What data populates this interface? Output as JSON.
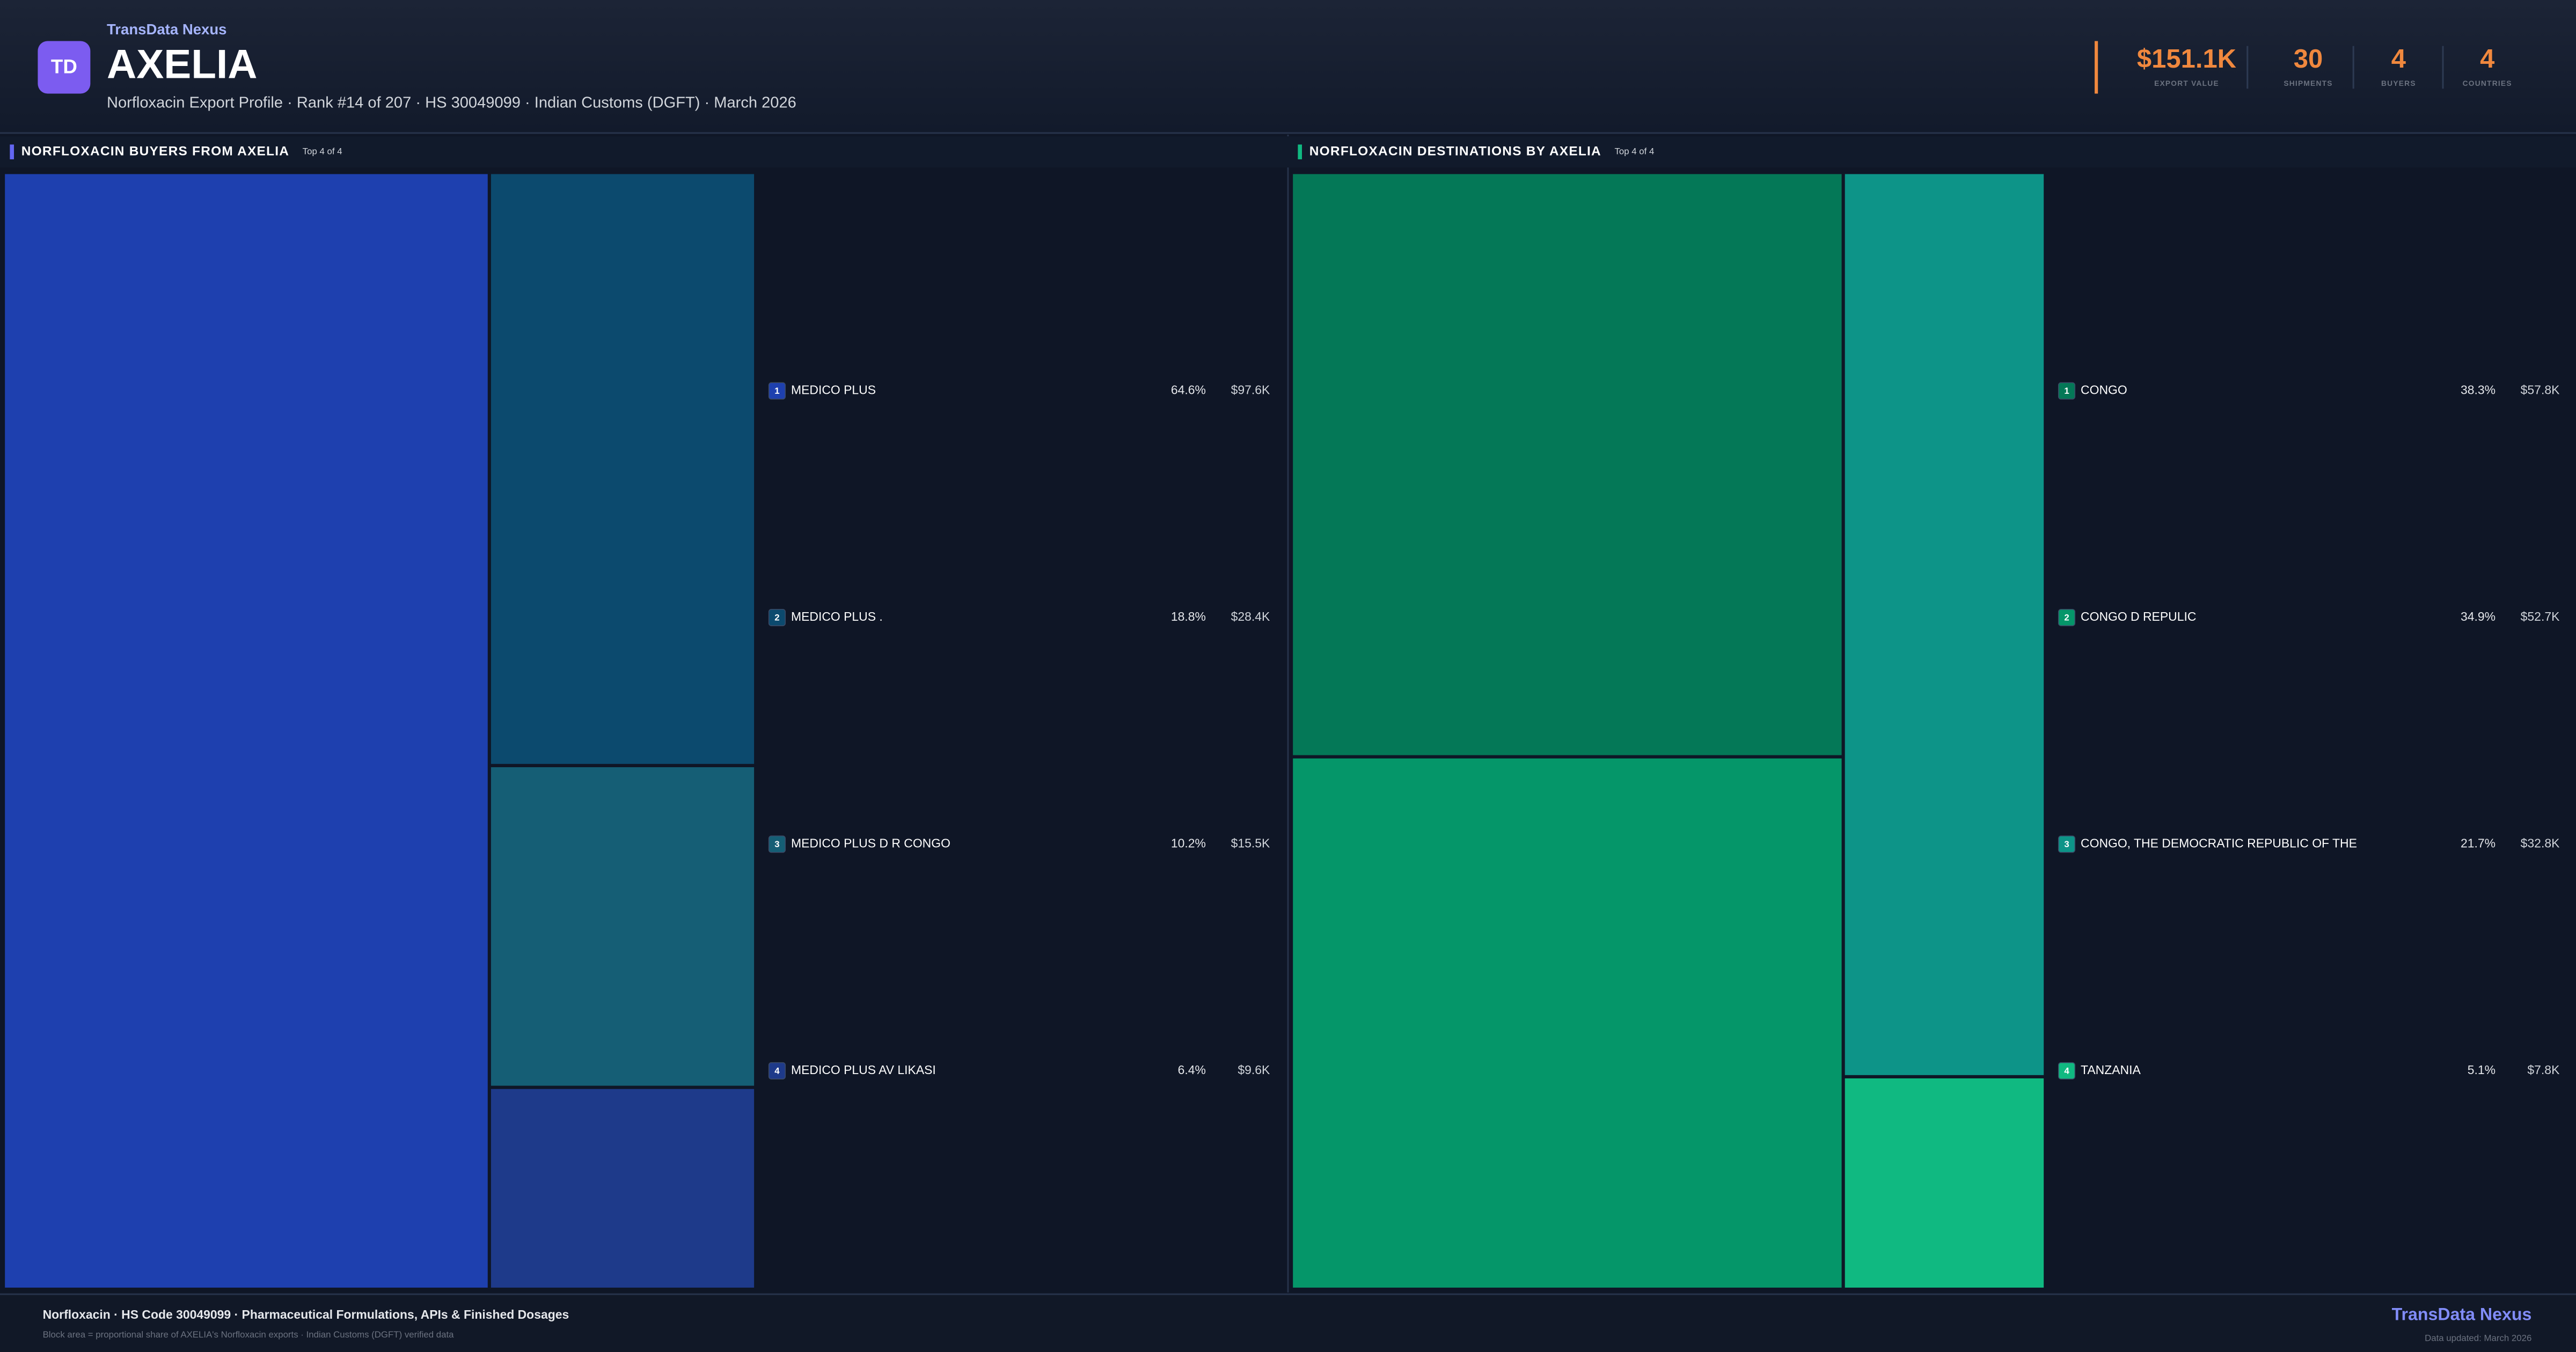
{
  "header": {
    "brand": "TransData Nexus",
    "logo": "TD",
    "title": "AXELIA",
    "subtitle": "Norfloxacin Export Profile · Rank #14 of 207 · HS 30049099 · Indian Customs (DGFT) · March 2026"
  },
  "kpis": [
    {
      "value": "$151.1K",
      "label": "EXPORT VALUE"
    },
    {
      "value": "30",
      "label": "SHIPMENTS"
    },
    {
      "value": "4",
      "label": "BUYERS"
    },
    {
      "value": "4",
      "label": "COUNTRIES"
    }
  ],
  "chart_data": [
    {
      "type": "treemap",
      "title": "NORFLOXACIN BUYERS FROM AXELIA",
      "subtitle": "Top 4 of 4",
      "accent": "#6366f1",
      "categories": [
        "MEDICO PLUS",
        "MEDICO PLUS .",
        "MEDICO PLUS D R CONGO",
        "MEDICO PLUS AV LIKASI"
      ],
      "ranks": [
        1,
        2,
        3,
        4
      ],
      "values": [
        97.6,
        28.4,
        15.5,
        9.6
      ],
      "value_labels": [
        "$97.6K",
        "$28.4K",
        "$15.5K",
        "$9.6K"
      ],
      "shares": [
        64.6,
        18.8,
        10.2,
        6.4
      ],
      "share_labels": [
        "64.6%",
        "18.8%",
        "10.2%",
        "6.4%"
      ],
      "colors": [
        "#1e40af",
        "#0c4a6e",
        "#155e75",
        "#1e3a8a"
      ]
    },
    {
      "type": "treemap",
      "title": "NORFLOXACIN DESTINATIONS BY AXELIA",
      "subtitle": "Top 4 of 4",
      "accent": "#10b981",
      "categories": [
        "CONGO",
        "CONGO D REPULIC",
        "CONGO, THE DEMOCRATIC REPUBLIC OF THE",
        "TANZANIA"
      ],
      "ranks": [
        1,
        2,
        3,
        4
      ],
      "values": [
        57.8,
        52.7,
        32.8,
        7.8
      ],
      "value_labels": [
        "$57.8K",
        "$52.7K",
        "$32.8K",
        "$7.8K"
      ],
      "shares": [
        38.3,
        34.9,
        21.7,
        5.1
      ],
      "share_labels": [
        "38.3%",
        "34.9%",
        "21.7%",
        "5.1%"
      ],
      "colors": [
        "#047857",
        "#059669",
        "#0d9488",
        "#10b981"
      ]
    }
  ],
  "footer": {
    "left_title": "Norfloxacin · HS Code 30049099 · Pharmaceutical Formulations, APIs & Finished Dosages",
    "left_note": "Block area = proportional share of AXELIA's Norfloxacin exports · Indian Customs (DGFT) verified data",
    "brand": "TransData Nexus",
    "updated": "Data updated: March 2026"
  }
}
